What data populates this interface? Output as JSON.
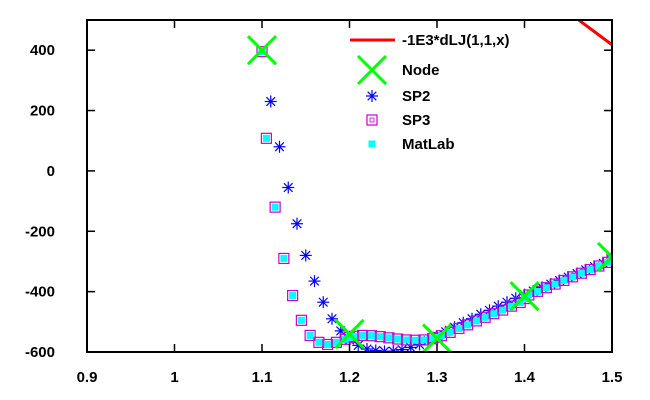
{
  "chart_data": {
    "type": "scatter",
    "xlim": [
      0.9,
      1.5
    ],
    "ylim": [
      -600,
      500
    ],
    "xticks": [
      "0.9",
      "1",
      "1.1",
      "1.2",
      "1.3",
      "1.4",
      "1.5"
    ],
    "yticks": [
      "-600",
      "-400",
      "-200",
      "0",
      "200",
      "400"
    ],
    "grid": false,
    "legend_position": "top-right",
    "series": [
      {
        "name": "-1E3*dLJ(1,1,x)",
        "kind": "line",
        "color": "#ff0000",
        "x": [
          1.462,
          1.5
        ],
        "y": [
          500,
          418
        ]
      },
      {
        "name": "Node",
        "kind": "x-marker",
        "color": "#00ff00",
        "x": [
          1.1,
          1.2,
          1.3,
          1.4,
          1.5
        ],
        "y": [
          400,
          -540,
          -555,
          -415,
          -285
        ]
      },
      {
        "name": "SP2",
        "kind": "star-marker",
        "color": "#0000ff",
        "x": [
          1.11,
          1.12,
          1.13,
          1.14,
          1.15,
          1.16,
          1.17,
          1.18,
          1.19,
          1.2,
          1.21,
          1.22,
          1.23,
          1.24,
          1.25,
          1.26,
          1.27,
          1.28,
          1.29,
          1.3,
          1.31,
          1.32,
          1.33,
          1.34,
          1.35,
          1.36,
          1.37,
          1.38,
          1.39,
          1.4,
          1.41,
          1.42,
          1.43,
          1.44,
          1.45,
          1.46,
          1.47,
          1.48,
          1.49,
          1.5
        ],
        "y": [
          230,
          80,
          -55,
          -175,
          -280,
          -365,
          -435,
          -490,
          -530,
          -560,
          -578,
          -590,
          -595,
          -598,
          -597,
          -592,
          -585,
          -575,
          -562,
          -548,
          -533,
          -518,
          -503,
          -490,
          -475,
          -462,
          -448,
          -435,
          -422,
          -410,
          -398,
          -386,
          -375,
          -363,
          -352,
          -340,
          -328,
          -317,
          -306,
          -295
        ]
      },
      {
        "name": "SP3",
        "kind": "square-marker",
        "color": "#cc00cc",
        "x": [
          1.1,
          1.105,
          1.115,
          1.125,
          1.135,
          1.145,
          1.155,
          1.165,
          1.175,
          1.185,
          1.195,
          1.2,
          1.205,
          1.215,
          1.225,
          1.235,
          1.245,
          1.255,
          1.265,
          1.275,
          1.285,
          1.295,
          1.3,
          1.305,
          1.315,
          1.325,
          1.335,
          1.345,
          1.355,
          1.365,
          1.375,
          1.385,
          1.395,
          1.4,
          1.405,
          1.415,
          1.425,
          1.435,
          1.445,
          1.455,
          1.465,
          1.475,
          1.485,
          1.495,
          1.5
        ],
        "y": [
          395,
          108,
          -120,
          -290,
          -413,
          -495,
          -545,
          -568,
          -575,
          -568,
          -558,
          -552,
          -548,
          -545,
          -546,
          -549,
          -553,
          -557,
          -560,
          -561,
          -560,
          -556,
          -552,
          -546,
          -535,
          -522,
          -510,
          -497,
          -485,
          -473,
          -461,
          -448,
          -436,
          -423,
          -411,
          -399,
          -387,
          -375,
          -363,
          -351,
          -339,
          -327,
          -315,
          -303,
          -290
        ]
      },
      {
        "name": "MatLab",
        "kind": "filled-square-marker",
        "color": "#00ffff",
        "x": [
          1.1,
          1.105,
          1.115,
          1.125,
          1.135,
          1.145,
          1.155,
          1.165,
          1.175,
          1.185,
          1.195,
          1.2,
          1.205,
          1.215,
          1.225,
          1.235,
          1.245,
          1.255,
          1.265,
          1.275,
          1.285,
          1.295,
          1.3,
          1.305,
          1.315,
          1.325,
          1.335,
          1.345,
          1.355,
          1.365,
          1.375,
          1.385,
          1.395,
          1.4,
          1.405,
          1.415,
          1.425,
          1.435,
          1.445,
          1.455,
          1.465,
          1.475,
          1.485,
          1.495,
          1.5
        ],
        "y": [
          395,
          108,
          -120,
          -290,
          -413,
          -495,
          -545,
          -568,
          -575,
          -568,
          -558,
          -552,
          -548,
          -545,
          -546,
          -549,
          -553,
          -557,
          -560,
          -561,
          -560,
          -556,
          -552,
          -546,
          -535,
          -522,
          -510,
          -497,
          -485,
          -473,
          -461,
          -448,
          -436,
          -423,
          -411,
          -399,
          -387,
          -375,
          -363,
          -351,
          -339,
          -327,
          -315,
          -303,
          -290
        ]
      }
    ]
  }
}
